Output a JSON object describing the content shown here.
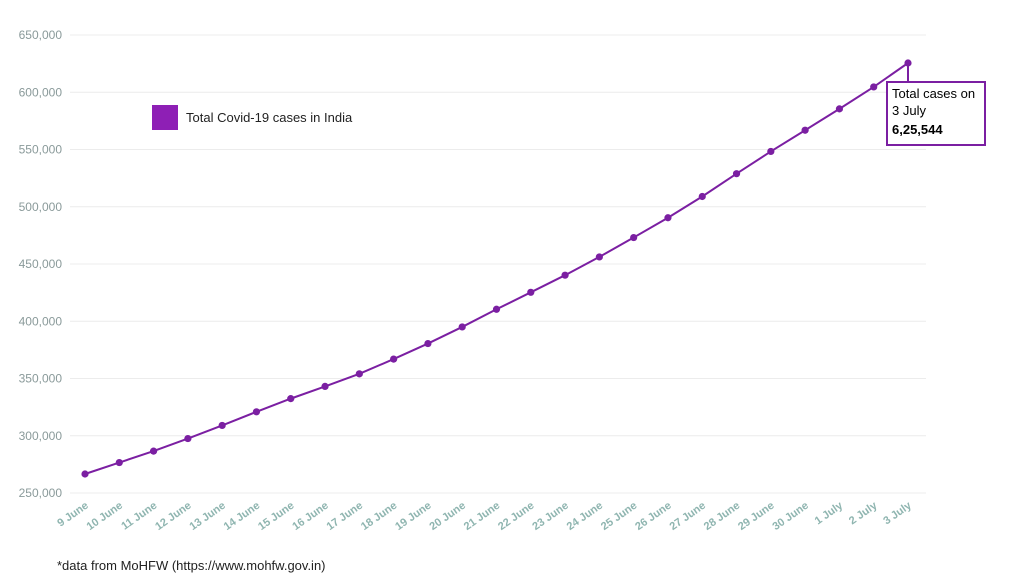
{
  "chart_data": {
    "type": "line",
    "title": "",
    "xlabel": "",
    "ylabel": "",
    "categories": [
      "9 June",
      "10 June",
      "11 June",
      "12 June",
      "13 June",
      "14 June",
      "15 June",
      "16 June",
      "17 June",
      "18 June",
      "19 June",
      "20 June",
      "21 June",
      "22 June",
      "23 June",
      "24 June",
      "25 June",
      "26 June",
      "27 June",
      "28 June",
      "29 June",
      "30 June",
      "1 July",
      "2 July",
      "3 July"
    ],
    "series": [
      {
        "name": "Total Covid-19 cases in India",
        "color": "#7b1fa2",
        "values": [
          266598,
          276583,
          286579,
          297535,
          308993,
          320922,
          332424,
          343091,
          354065,
          366946,
          380532,
          395048,
          410461,
          425282,
          440215,
          456183,
          473105,
          490401,
          508953,
          528859,
          548318,
          566840,
          585493,
          604641,
          625544
        ]
      }
    ],
    "ylim": [
      250000,
      650000
    ],
    "yticks": [
      250000,
      300000,
      350000,
      400000,
      450000,
      500000,
      550000,
      600000,
      650000
    ],
    "ytick_labels": [
      "250,000",
      "300,000",
      "350,000",
      "400,000",
      "450,000",
      "500,000",
      "550,000",
      "600,000",
      "650,000"
    ],
    "grid": true,
    "legend": {
      "position": "top-left",
      "label": "Total Covid-19 cases in India",
      "swatch_color": "#8e1fb5"
    },
    "annotation": {
      "line1": "Total cases on",
      "line2": "3 July",
      "value": "6,25,544",
      "point_index": 24,
      "border_color": "#7b1fa2"
    }
  },
  "footer": {
    "source": "*data from MoHFW (https://www.mohfw.gov.in)"
  }
}
